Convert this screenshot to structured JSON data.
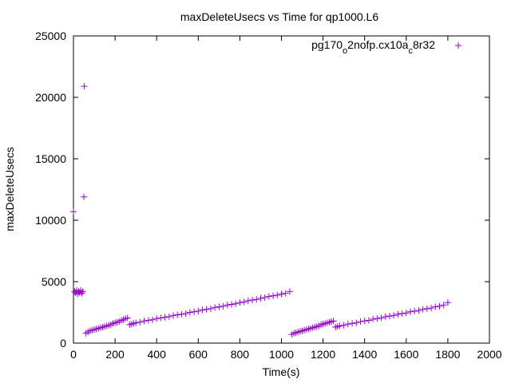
{
  "chart_data": {
    "type": "scatter",
    "title": "maxDeleteUsecs vs Time for qp1000.L6",
    "xlabel": "Time(s)",
    "ylabel": "maxDeleteUsecs",
    "xlim": [
      0,
      2000
    ],
    "ylim": [
      0,
      25000
    ],
    "xticks": [
      0,
      200,
      400,
      600,
      800,
      1000,
      1200,
      1400,
      1600,
      1800,
      2000
    ],
    "yticks": [
      0,
      5000,
      10000,
      15000,
      20000,
      25000
    ],
    "grid": false,
    "legend_position": "top-right",
    "marker": "+",
    "series": [
      {
        "name_parts": [
          "pg170",
          "o",
          "2nofp.cx10a",
          "c",
          "8r32"
        ],
        "color": "#9400d3",
        "points": [
          [
            0,
            10700
          ],
          [
            5,
            4200
          ],
          [
            10,
            4100
          ],
          [
            15,
            4300
          ],
          [
            20,
            4000
          ],
          [
            25,
            4200
          ],
          [
            30,
            4100
          ],
          [
            35,
            4300
          ],
          [
            40,
            4050
          ],
          [
            45,
            4200
          ],
          [
            50,
            11900
          ],
          [
            52,
            20900
          ],
          [
            60,
            800
          ],
          [
            70,
            900
          ],
          [
            80,
            1000
          ],
          [
            90,
            1050
          ],
          [
            100,
            1100
          ],
          [
            110,
            1150
          ],
          [
            120,
            1200
          ],
          [
            130,
            1250
          ],
          [
            140,
            1300
          ],
          [
            150,
            1350
          ],
          [
            160,
            1400
          ],
          [
            170,
            1450
          ],
          [
            180,
            1500
          ],
          [
            190,
            1600
          ],
          [
            200,
            1650
          ],
          [
            210,
            1700
          ],
          [
            220,
            1750
          ],
          [
            230,
            1850
          ],
          [
            240,
            1900
          ],
          [
            250,
            2000
          ],
          [
            260,
            2050
          ],
          [
            270,
            1500
          ],
          [
            280,
            1550
          ],
          [
            290,
            1600
          ],
          [
            300,
            1650
          ],
          [
            320,
            1700
          ],
          [
            340,
            1800
          ],
          [
            360,
            1850
          ],
          [
            380,
            1900
          ],
          [
            400,
            2000
          ],
          [
            420,
            2050
          ],
          [
            440,
            2100
          ],
          [
            460,
            2150
          ],
          [
            480,
            2250
          ],
          [
            500,
            2300
          ],
          [
            520,
            2350
          ],
          [
            540,
            2400
          ],
          [
            560,
            2500
          ],
          [
            580,
            2550
          ],
          [
            600,
            2600
          ],
          [
            620,
            2700
          ],
          [
            640,
            2750
          ],
          [
            660,
            2800
          ],
          [
            680,
            2900
          ],
          [
            700,
            2950
          ],
          [
            720,
            3000
          ],
          [
            740,
            3100
          ],
          [
            760,
            3150
          ],
          [
            780,
            3200
          ],
          [
            800,
            3300
          ],
          [
            820,
            3350
          ],
          [
            840,
            3450
          ],
          [
            860,
            3500
          ],
          [
            880,
            3550
          ],
          [
            900,
            3650
          ],
          [
            920,
            3700
          ],
          [
            940,
            3800
          ],
          [
            960,
            3850
          ],
          [
            980,
            3900
          ],
          [
            1000,
            4000
          ],
          [
            1020,
            4050
          ],
          [
            1040,
            4200
          ],
          [
            1050,
            700
          ],
          [
            1060,
            800
          ],
          [
            1070,
            850
          ],
          [
            1080,
            900
          ],
          [
            1090,
            950
          ],
          [
            1100,
            1000
          ],
          [
            1110,
            1050
          ],
          [
            1120,
            1100
          ],
          [
            1130,
            1150
          ],
          [
            1140,
            1200
          ],
          [
            1150,
            1250
          ],
          [
            1160,
            1300
          ],
          [
            1170,
            1350
          ],
          [
            1180,
            1400
          ],
          [
            1190,
            1500
          ],
          [
            1200,
            1550
          ],
          [
            1210,
            1600
          ],
          [
            1220,
            1650
          ],
          [
            1230,
            1700
          ],
          [
            1240,
            1750
          ],
          [
            1250,
            1800
          ],
          [
            1260,
            1300
          ],
          [
            1270,
            1350
          ],
          [
            1280,
            1400
          ],
          [
            1300,
            1450
          ],
          [
            1320,
            1550
          ],
          [
            1340,
            1600
          ],
          [
            1360,
            1650
          ],
          [
            1380,
            1750
          ],
          [
            1400,
            1800
          ],
          [
            1420,
            1850
          ],
          [
            1440,
            1950
          ],
          [
            1460,
            2000
          ],
          [
            1480,
            2050
          ],
          [
            1500,
            2150
          ],
          [
            1520,
            2200
          ],
          [
            1540,
            2250
          ],
          [
            1560,
            2350
          ],
          [
            1580,
            2400
          ],
          [
            1600,
            2450
          ],
          [
            1620,
            2550
          ],
          [
            1640,
            2600
          ],
          [
            1660,
            2650
          ],
          [
            1680,
            2750
          ],
          [
            1700,
            2800
          ],
          [
            1720,
            2850
          ],
          [
            1740,
            2950
          ],
          [
            1760,
            3000
          ],
          [
            1780,
            3100
          ],
          [
            1800,
            3300
          ]
        ]
      }
    ]
  }
}
